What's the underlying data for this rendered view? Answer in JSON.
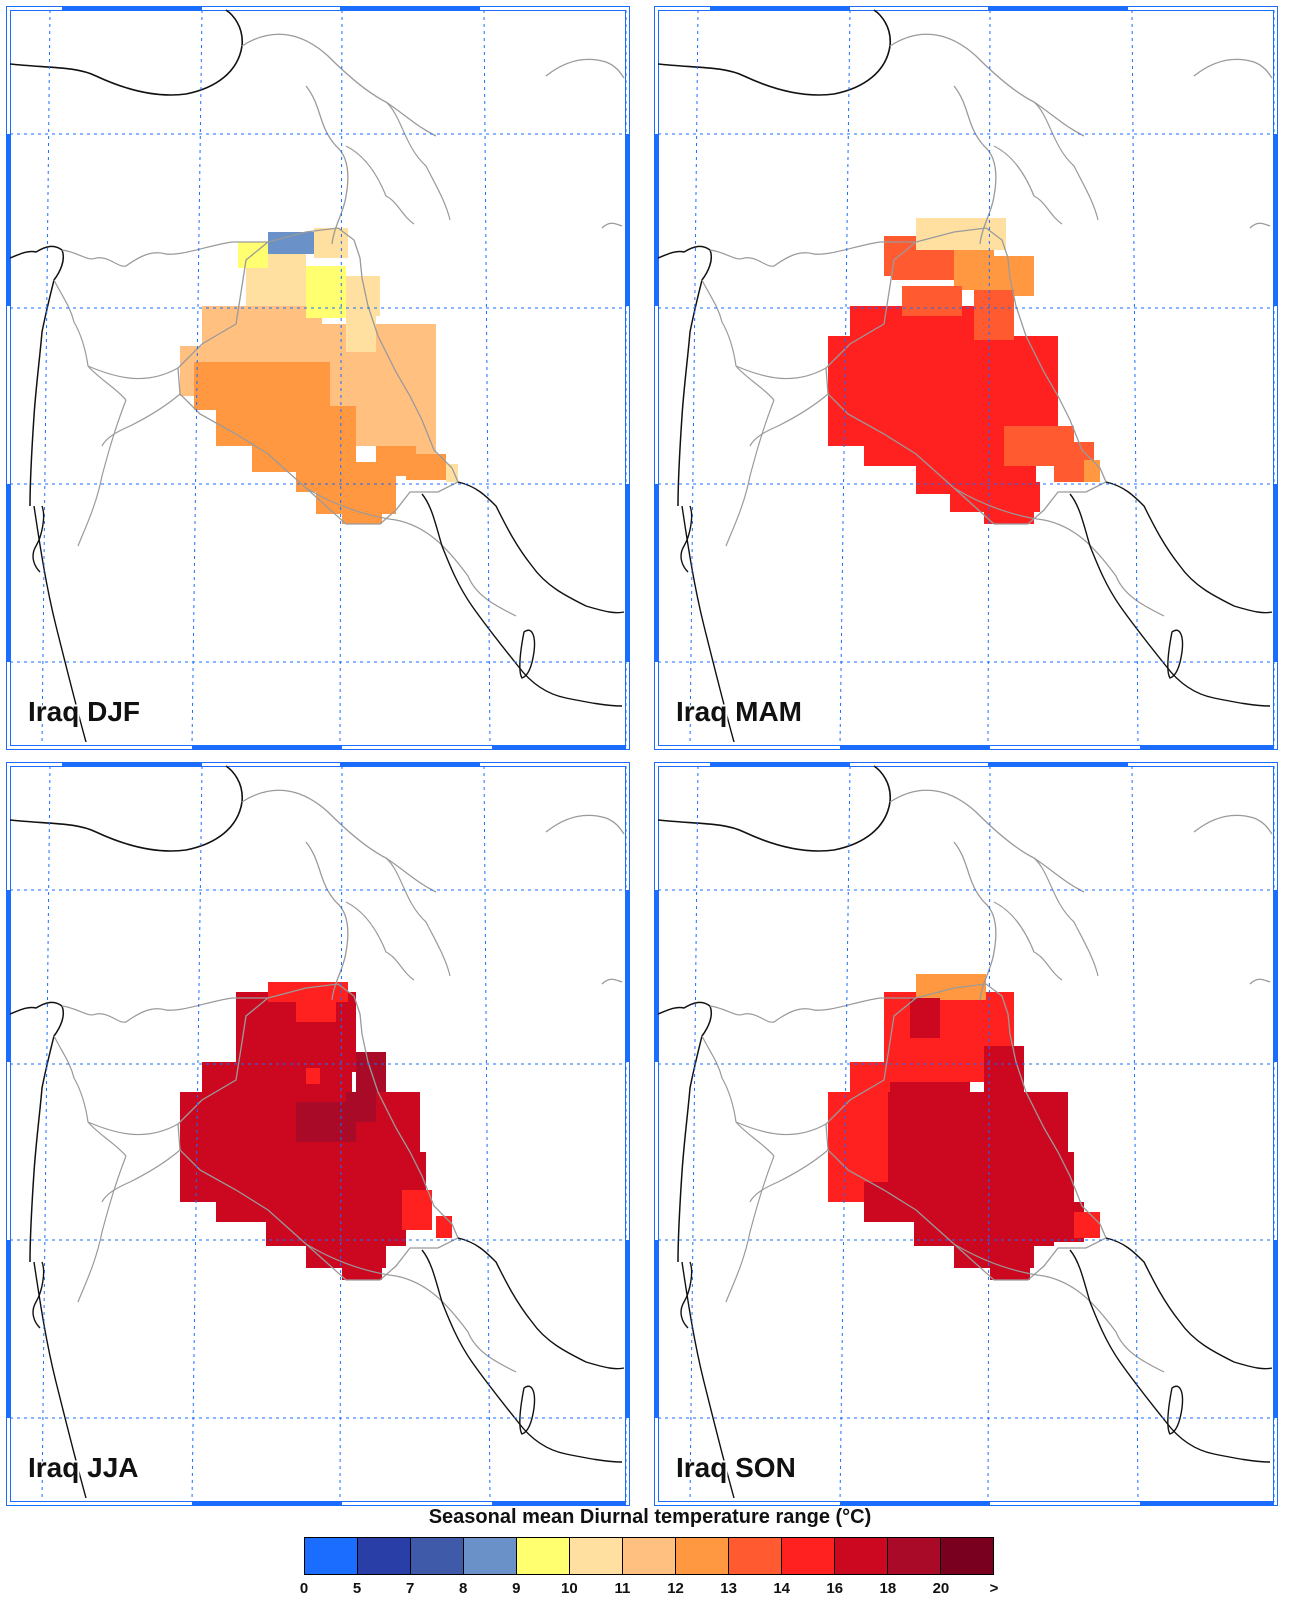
{
  "colorbar": {
    "title": "Seasonal mean Diurnal temperature range (°C)",
    "ticks": [
      "0",
      "5",
      "7",
      "8",
      "9",
      "10",
      "11",
      "12",
      "13",
      "14",
      "16",
      "18",
      "20",
      ">"
    ],
    "colors": [
      "#1a6dff",
      "#2a3ea8",
      "#3e5aa8",
      "#6a92c8",
      "#ffff70",
      "#ffe0a0",
      "#ffc080",
      "#ff9840",
      "#ff5a30",
      "#ff2020",
      "#cc0820",
      "#a80a28",
      "#7a0020"
    ]
  },
  "panels": [
    {
      "label": "Iraq DJF"
    },
    {
      "label": "Iraq MAM"
    },
    {
      "label": "Iraq JJA"
    },
    {
      "label": "Iraq SON"
    }
  ]
}
